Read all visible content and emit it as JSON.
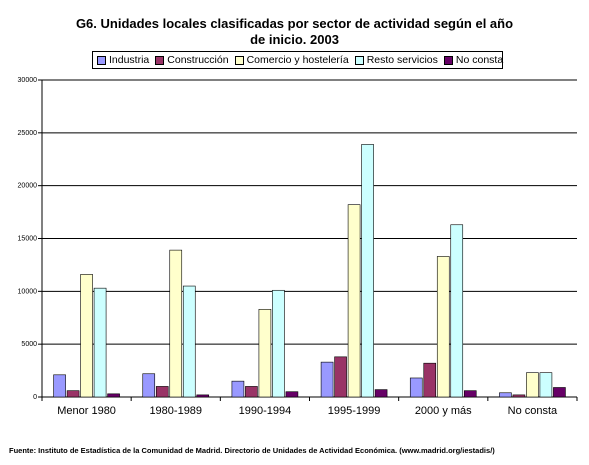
{
  "chart_data": {
    "type": "bar",
    "title": "G6. Unidades locales clasificadas por sector de actividad según el año de inicio. 2003",
    "title_lines": [
      "G6. Unidades locales clasificadas por sector de actividad según el año",
      "de inicio. 2003"
    ],
    "categories": [
      "Menor 1980",
      "1980-1989",
      "1990-1994",
      "1995-1999",
      "2000 y más",
      "No consta"
    ],
    "series": [
      {
        "name": "Industria",
        "color": "#9999ff",
        "values": [
          2100,
          2200,
          1500,
          3300,
          1800,
          400
        ]
      },
      {
        "name": "Construcción",
        "color": "#993366",
        "values": [
          600,
          1000,
          1000,
          3800,
          3200,
          200
        ]
      },
      {
        "name": "Comercio y hostelería",
        "color": "#ffffcc",
        "values": [
          11600,
          13900,
          8300,
          18200,
          13300,
          2300
        ]
      },
      {
        "name": "Resto servicios",
        "color": "#ccffff",
        "values": [
          10300,
          10500,
          10100,
          23900,
          16300,
          2300
        ]
      },
      {
        "name": "No consta",
        "color": "#660066",
        "values": [
          300,
          200,
          500,
          700,
          600,
          900
        ]
      }
    ],
    "ylim": [
      0,
      30000
    ],
    "yticks": [
      0,
      5000,
      10000,
      15000,
      20000,
      25000,
      30000
    ],
    "grid": true,
    "legend": "top"
  },
  "source": "Fuente: Instituto de Estadística de la Comunidad de Madrid. Directorio de Unidades de Actividad Económica. (www.madrid.org/iestadis/)"
}
